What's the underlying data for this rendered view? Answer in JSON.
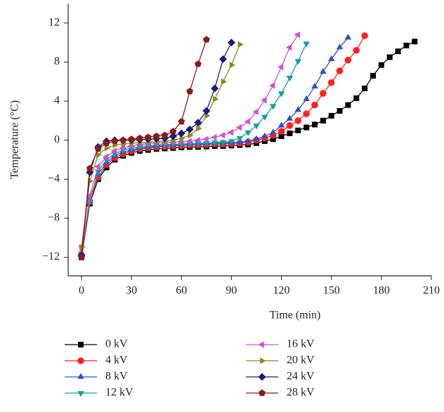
{
  "chart_data": {
    "type": "line",
    "x_label": "Time (min)",
    "y_label": "Temperature (°C)",
    "x": [
      0,
      5,
      10,
      15,
      20,
      25,
      30,
      35,
      40,
      45,
      50,
      55,
      60,
      65,
      70,
      75,
      80,
      85,
      90,
      95,
      100,
      105,
      110,
      115,
      120,
      125,
      130,
      135,
      140,
      145,
      150,
      155,
      160,
      165,
      170,
      175,
      180,
      185,
      190,
      195,
      200
    ],
    "xlim": [
      -8,
      210
    ],
    "xticks": [
      0,
      30,
      60,
      90,
      120,
      150,
      180,
      210
    ],
    "ylim": [
      -13.9,
      14
    ],
    "yticks": [
      {
        "value": -12,
        "label": "−12"
      },
      {
        "value": -8,
        "label": "−8"
      },
      {
        "value": -4,
        "label": "−4"
      },
      0,
      4,
      8,
      12
    ],
    "series": [
      {
        "name": "0 kV",
        "color": "#000000",
        "marker": "square",
        "values": [
          -12,
          -6.5,
          -4,
          -2.8,
          -2,
          -1.6,
          -1.3,
          -1.1,
          -1,
          -0.9,
          -0.85,
          -0.8,
          -0.75,
          -0.7,
          -0.7,
          -0.65,
          -0.6,
          -0.6,
          -0.55,
          -0.5,
          -0.45,
          -0.3,
          -0.1,
          0.1,
          0.4,
          0.7,
          1,
          1.3,
          1.6,
          2,
          2.5,
          3,
          3.6,
          4.3,
          5.3,
          6.6,
          7.7,
          8.5,
          9.1,
          9.7,
          10.1
        ]
      },
      {
        "name": "4 kV",
        "color": "#ff2020",
        "marker": "circle",
        "values": [
          -11.8,
          -6.3,
          -3.8,
          -2.5,
          -1.8,
          -1.4,
          -1.1,
          -0.9,
          -0.8,
          -0.7,
          -0.65,
          -0.6,
          -0.55,
          -0.5,
          -0.5,
          -0.45,
          -0.4,
          -0.4,
          -0.35,
          -0.3,
          -0.2,
          0,
          0.2,
          0.5,
          0.9,
          1.5,
          2,
          2.7,
          3.6,
          4.8,
          5.9,
          7.1,
          8.2,
          9.2,
          10.7,
          null,
          null,
          null,
          null,
          null,
          null
        ]
      },
      {
        "name": "8 kV",
        "color": "#3050c8",
        "marker": "triangle-up",
        "values": [
          -11.5,
          -6,
          -3.5,
          -2.3,
          -1.6,
          -1.2,
          -1,
          -0.8,
          -0.7,
          -0.6,
          -0.55,
          -0.5,
          -0.45,
          -0.4,
          -0.4,
          -0.35,
          -0.3,
          -0.3,
          -0.25,
          -0.2,
          -0.1,
          0.1,
          0.4,
          0.8,
          1.5,
          2.2,
          3.1,
          4.2,
          5.5,
          7,
          8.3,
          9.5,
          10.5,
          null,
          null,
          null,
          null,
          null,
          null,
          null,
          null
        ]
      },
      {
        "name": "12 kV",
        "color": "#10a0a0",
        "marker": "triangle-down",
        "values": [
          -11,
          -6.3,
          -3.2,
          -2,
          -1.4,
          -1,
          -0.8,
          -0.65,
          -0.55,
          -0.5,
          -0.45,
          -0.4,
          -0.4,
          -0.35,
          -0.3,
          -0.3,
          -0.25,
          -0.2,
          -0.1,
          0.2,
          0.8,
          1.5,
          2.4,
          3.5,
          4.8,
          6.4,
          8.1,
          9.9,
          null,
          null,
          null,
          null,
          null,
          null,
          null,
          null,
          null,
          null,
          null,
          null,
          null
        ]
      },
      {
        "name": "16 kV",
        "color": "#d050d0",
        "marker": "triangle-left",
        "values": [
          -11.5,
          -5.7,
          -2.7,
          -1.7,
          -1.1,
          -0.8,
          -0.6,
          -0.45,
          -0.35,
          -0.3,
          -0.25,
          -0.2,
          -0.15,
          -0.1,
          0,
          0.1,
          0.3,
          0.5,
          0.8,
          1.3,
          1.9,
          2.9,
          4.1,
          5.6,
          7.5,
          9.5,
          10.8,
          null,
          null,
          null,
          null,
          null,
          null,
          null,
          null,
          null,
          null,
          null,
          null,
          null,
          null
        ]
      },
      {
        "name": "20 kV",
        "color": "#8c8c1a",
        "marker": "triangle-right",
        "values": [
          -11,
          -4.2,
          -1.5,
          -0.8,
          -0.5,
          -0.4,
          -0.3,
          -0.25,
          -0.2,
          -0.15,
          -0.1,
          0,
          0.2,
          0.5,
          1.2,
          2.5,
          4.2,
          6,
          7.7,
          9.8,
          null,
          null,
          null,
          null,
          null,
          null,
          null,
          null,
          null,
          null,
          null,
          null,
          null,
          null,
          null,
          null,
          null,
          null,
          null,
          null,
          null
        ]
      },
      {
        "name": "24 kV",
        "color": "#1a1a80",
        "marker": "diamond",
        "values": [
          -11.8,
          -3.3,
          -0.7,
          -0.1,
          0,
          0,
          0,
          0.05,
          0.1,
          0.15,
          0.2,
          0.4,
          0.7,
          1.1,
          1.8,
          3,
          5.3,
          8.3,
          10,
          null,
          null,
          null,
          null,
          null,
          null,
          null,
          null,
          null,
          null,
          null,
          null,
          null,
          null,
          null,
          null,
          null,
          null,
          null,
          null,
          null,
          null
        ]
      },
      {
        "name": "28 kV",
        "color": "#8b1a1a",
        "marker": "pentagon",
        "values": [
          -12,
          -2.9,
          -0.9,
          -0.3,
          -0.1,
          0,
          0.1,
          0.2,
          0.3,
          0.4,
          0.5,
          0.9,
          1.9,
          5,
          7.8,
          10.3,
          null,
          null,
          null,
          null,
          null,
          null,
          null,
          null,
          null,
          null,
          null,
          null,
          null,
          null,
          null,
          null,
          null,
          null,
          null,
          null,
          null,
          null,
          null,
          null,
          null
        ]
      }
    ]
  }
}
